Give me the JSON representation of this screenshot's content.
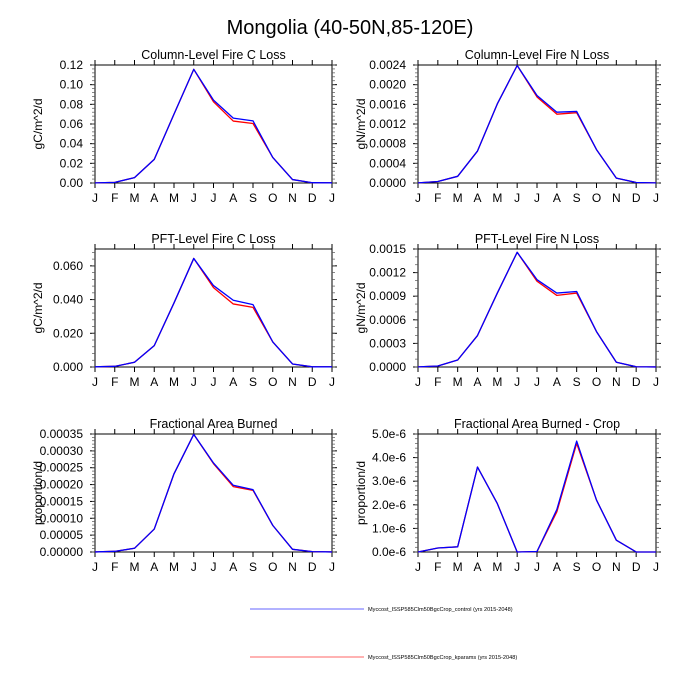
{
  "figure": {
    "title": "Mongolia (40-50N,85-120E)"
  },
  "legend": {
    "placement": "bottom-center",
    "entries": [
      {
        "label": "Myccost_ISSP585Clm50BgcCrop_control (yrs 2015-2048)",
        "color": "#0000ff"
      },
      {
        "label": "Myccost_ISSP585Clm50BgcCrop_kparams (yrs 2015-2048)",
        "color": "#ff0000"
      }
    ]
  },
  "chart_data": [
    {
      "type": "line",
      "title": "Column-Level Fire C Loss",
      "xlabel": "",
      "ylabel": "gC/m^2/d",
      "x_tick_labels": [
        "J",
        "F",
        "M",
        "A",
        "M",
        "J",
        "J",
        "A",
        "S",
        "O",
        "N",
        "D",
        "J"
      ],
      "ylim": [
        0,
        0.12
      ],
      "y_ticks": [
        0,
        0.02,
        0.04,
        0.06,
        0.08,
        0.1,
        0.12
      ],
      "y_tick_labels": [
        "0.00",
        "0.02",
        "0.04",
        "0.06",
        "0.08",
        "0.10",
        "0.12"
      ],
      "y_minor_per_major": 4,
      "series": [
        {
          "name": "Myccost_ISSP585Clm50BgcCrop_kparams (yrs 2015-2048)",
          "color": "#ff0000",
          "values": [
            0.0001,
            0.0006,
            0.0055,
            0.024,
            0.07,
            0.1156,
            0.0826,
            0.063,
            0.0605,
            0.026,
            0.0035,
            0.0003,
            0.0002
          ]
        },
        {
          "name": "Myccost_ISSP585Clm50BgcCrop_control (yrs 2015-2048)",
          "color": "#0000ff",
          "values": [
            0.0001,
            0.0006,
            0.0055,
            0.024,
            0.07,
            0.1156,
            0.0843,
            0.066,
            0.0632,
            0.026,
            0.0035,
            0.0003,
            0.0002
          ]
        }
      ]
    },
    {
      "type": "line",
      "title": "Column-Level Fire N Loss",
      "xlabel": "",
      "ylabel": "gN/m^2/d",
      "x_tick_labels": [
        "J",
        "F",
        "M",
        "A",
        "M",
        "J",
        "J",
        "A",
        "S",
        "O",
        "N",
        "D",
        "J"
      ],
      "ylim": [
        0,
        0.0024
      ],
      "y_ticks": [
        0,
        0.0004,
        0.0008,
        0.0012,
        0.0016,
        0.002,
        0.0024
      ],
      "y_tick_labels": [
        "0.0000",
        "0.0004",
        "0.0008",
        "0.0012",
        "0.0016",
        "0.0020",
        "0.0024"
      ],
      "y_minor_per_major": 4,
      "series": [
        {
          "name": "Myccost_ISSP585Clm50BgcCrop_kparams (yrs 2015-2048)",
          "color": "#ff0000",
          "values": [
            2e-06,
            3e-05,
            0.000136,
            0.00065,
            0.00161,
            0.00239,
            0.00175,
            0.0014,
            0.00143,
            0.00068,
            0.0001,
            1e-05,
            2e-06
          ]
        },
        {
          "name": "Myccost_ISSP585Clm50BgcCrop_control (yrs 2015-2048)",
          "color": "#0000ff",
          "values": [
            2e-06,
            3e-05,
            0.000136,
            0.00065,
            0.00161,
            0.00239,
            0.00178,
            0.00144,
            0.001455,
            0.00068,
            0.0001,
            1e-05,
            2e-06
          ]
        }
      ]
    },
    {
      "type": "line",
      "title": "PFT-Level Fire C Loss",
      "xlabel": "",
      "ylabel": "gC/m^2/d",
      "x_tick_labels": [
        "J",
        "F",
        "M",
        "A",
        "M",
        "J",
        "J",
        "A",
        "S",
        "O",
        "N",
        "D",
        "J"
      ],
      "ylim": [
        0,
        0.07
      ],
      "y_ticks": [
        0,
        0.02,
        0.04,
        0.06
      ],
      "y_tick_labels": [
        "0.000",
        "0.020",
        "0.040",
        "0.060"
      ],
      "y_minor_per_major": 4,
      "series": [
        {
          "name": "Myccost_ISSP585Clm50BgcCrop_kparams (yrs 2015-2048)",
          "color": "#ff0000",
          "values": [
            0.0001,
            0.0004,
            0.0028,
            0.0127,
            0.038,
            0.0644,
            0.0471,
            0.0374,
            0.0354,
            0.0149,
            0.0018,
            0.0001,
            0.0001
          ]
        },
        {
          "name": "Myccost_ISSP585Clm50BgcCrop_control (yrs 2015-2048)",
          "color": "#0000ff",
          "values": [
            0.0001,
            0.0004,
            0.0028,
            0.0127,
            0.038,
            0.0644,
            0.0483,
            0.0396,
            0.037,
            0.0149,
            0.0018,
            0.0001,
            0.0001
          ]
        }
      ]
    },
    {
      "type": "line",
      "title": "PFT-Level Fire N Loss",
      "xlabel": "",
      "ylabel": "gN/m^2/d",
      "x_tick_labels": [
        "J",
        "F",
        "M",
        "A",
        "M",
        "J",
        "J",
        "A",
        "S",
        "O",
        "N",
        "D",
        "J"
      ],
      "ylim": [
        0,
        0.0015
      ],
      "y_ticks": [
        0,
        0.0003,
        0.0006,
        0.0009,
        0.0012,
        0.0015
      ],
      "y_tick_labels": [
        "0.0000",
        "0.0003",
        "0.0006",
        "0.0009",
        "0.0012",
        "0.0015"
      ],
      "y_minor_per_major": 2,
      "series": [
        {
          "name": "Myccost_ISSP585Clm50BgcCrop_kparams (yrs 2015-2048)",
          "color": "#ff0000",
          "values": [
            2e-06,
            1.3e-05,
            8.9e-05,
            0.0004,
            0.00094,
            0.001458,
            0.00109,
            0.00091,
            0.00094,
            0.00045,
            6e-05,
            3e-06,
            1e-06
          ]
        },
        {
          "name": "Myccost_ISSP585Clm50BgcCrop_control (yrs 2015-2048)",
          "color": "#0000ff",
          "values": [
            2e-06,
            1.3e-05,
            8.9e-05,
            0.0004,
            0.00094,
            0.001458,
            0.00111,
            0.00094,
            0.00096,
            0.00045,
            6e-05,
            3e-06,
            1e-06
          ]
        }
      ]
    },
    {
      "type": "line",
      "title": "Fractional Area Burned",
      "xlabel": "",
      "ylabel": "proportion/d",
      "x_tick_labels": [
        "J",
        "F",
        "M",
        "A",
        "M",
        "J",
        "J",
        "A",
        "S",
        "O",
        "N",
        "D",
        "J"
      ],
      "ylim": [
        0,
        0.00035
      ],
      "y_ticks": [
        0,
        5e-05,
        0.0001,
        0.00015,
        0.0002,
        0.00025,
        0.0003,
        0.00035
      ],
      "y_tick_labels": [
        "0.00000",
        "0.00005",
        "0.00010",
        "0.00015",
        "0.00020",
        "0.00025",
        "0.00030",
        "0.00035"
      ],
      "y_minor_per_major": 4,
      "series": [
        {
          "name": "Myccost_ISSP585Clm50BgcCrop_kparams (yrs 2015-2048)",
          "color": "#ff0000",
          "values": [
            2e-07,
            2e-06,
            1.1e-05,
            6.8e-05,
            0.000232,
            0.000349,
            0.000262,
            0.000194,
            0.000183,
            7.9e-05,
            8e-06,
            1e-06,
            2e-07
          ]
        },
        {
          "name": "Myccost_ISSP585Clm50BgcCrop_control (yrs 2015-2048)",
          "color": "#0000ff",
          "values": [
            2e-07,
            2e-06,
            1.1e-05,
            6.8e-05,
            0.000232,
            0.000349,
            0.000264,
            0.000198,
            0.000185,
            7.9e-05,
            8e-06,
            1e-06,
            2e-07
          ]
        }
      ]
    },
    {
      "type": "line",
      "title": "Fractional Area Burned - Crop",
      "xlabel": "",
      "ylabel": "proportion/d",
      "x_tick_labels": [
        "J",
        "F",
        "M",
        "A",
        "M",
        "J",
        "J",
        "A",
        "S",
        "O",
        "N",
        "D",
        "J"
      ],
      "ylim": [
        0,
        5e-06
      ],
      "y_ticks": [
        0,
        1e-06,
        2e-06,
        3e-06,
        4e-06,
        5e-06
      ],
      "y_tick_labels": [
        "0.0e-6",
        "1.0e-6",
        "2.0e-6",
        "3.0e-6",
        "4.0e-6",
        "5.0e-6"
      ],
      "y_minor_per_major": 4,
      "series": [
        {
          "name": "Myccost_ISSP585Clm50BgcCrop_kparams (yrs 2015-2048)",
          "color": "#ff0000",
          "values": [
            0.0,
            1.7e-07,
            2.2e-07,
            3.6e-06,
            2.05e-06,
            0.0,
            2e-08,
            1.7e-06,
            4.6e-06,
            2.2e-06,
            5e-07,
            0.0,
            0.0
          ]
        },
        {
          "name": "Myccost_ISSP585Clm50BgcCrop_control (yrs 2015-2048)",
          "color": "#0000ff",
          "values": [
            0.0,
            1.7e-07,
            2.2e-07,
            3.6e-06,
            2.05e-06,
            0.0,
            2e-08,
            1.8e-06,
            4.7e-06,
            2.2e-06,
            5e-07,
            0.0,
            0.0
          ]
        }
      ]
    }
  ]
}
